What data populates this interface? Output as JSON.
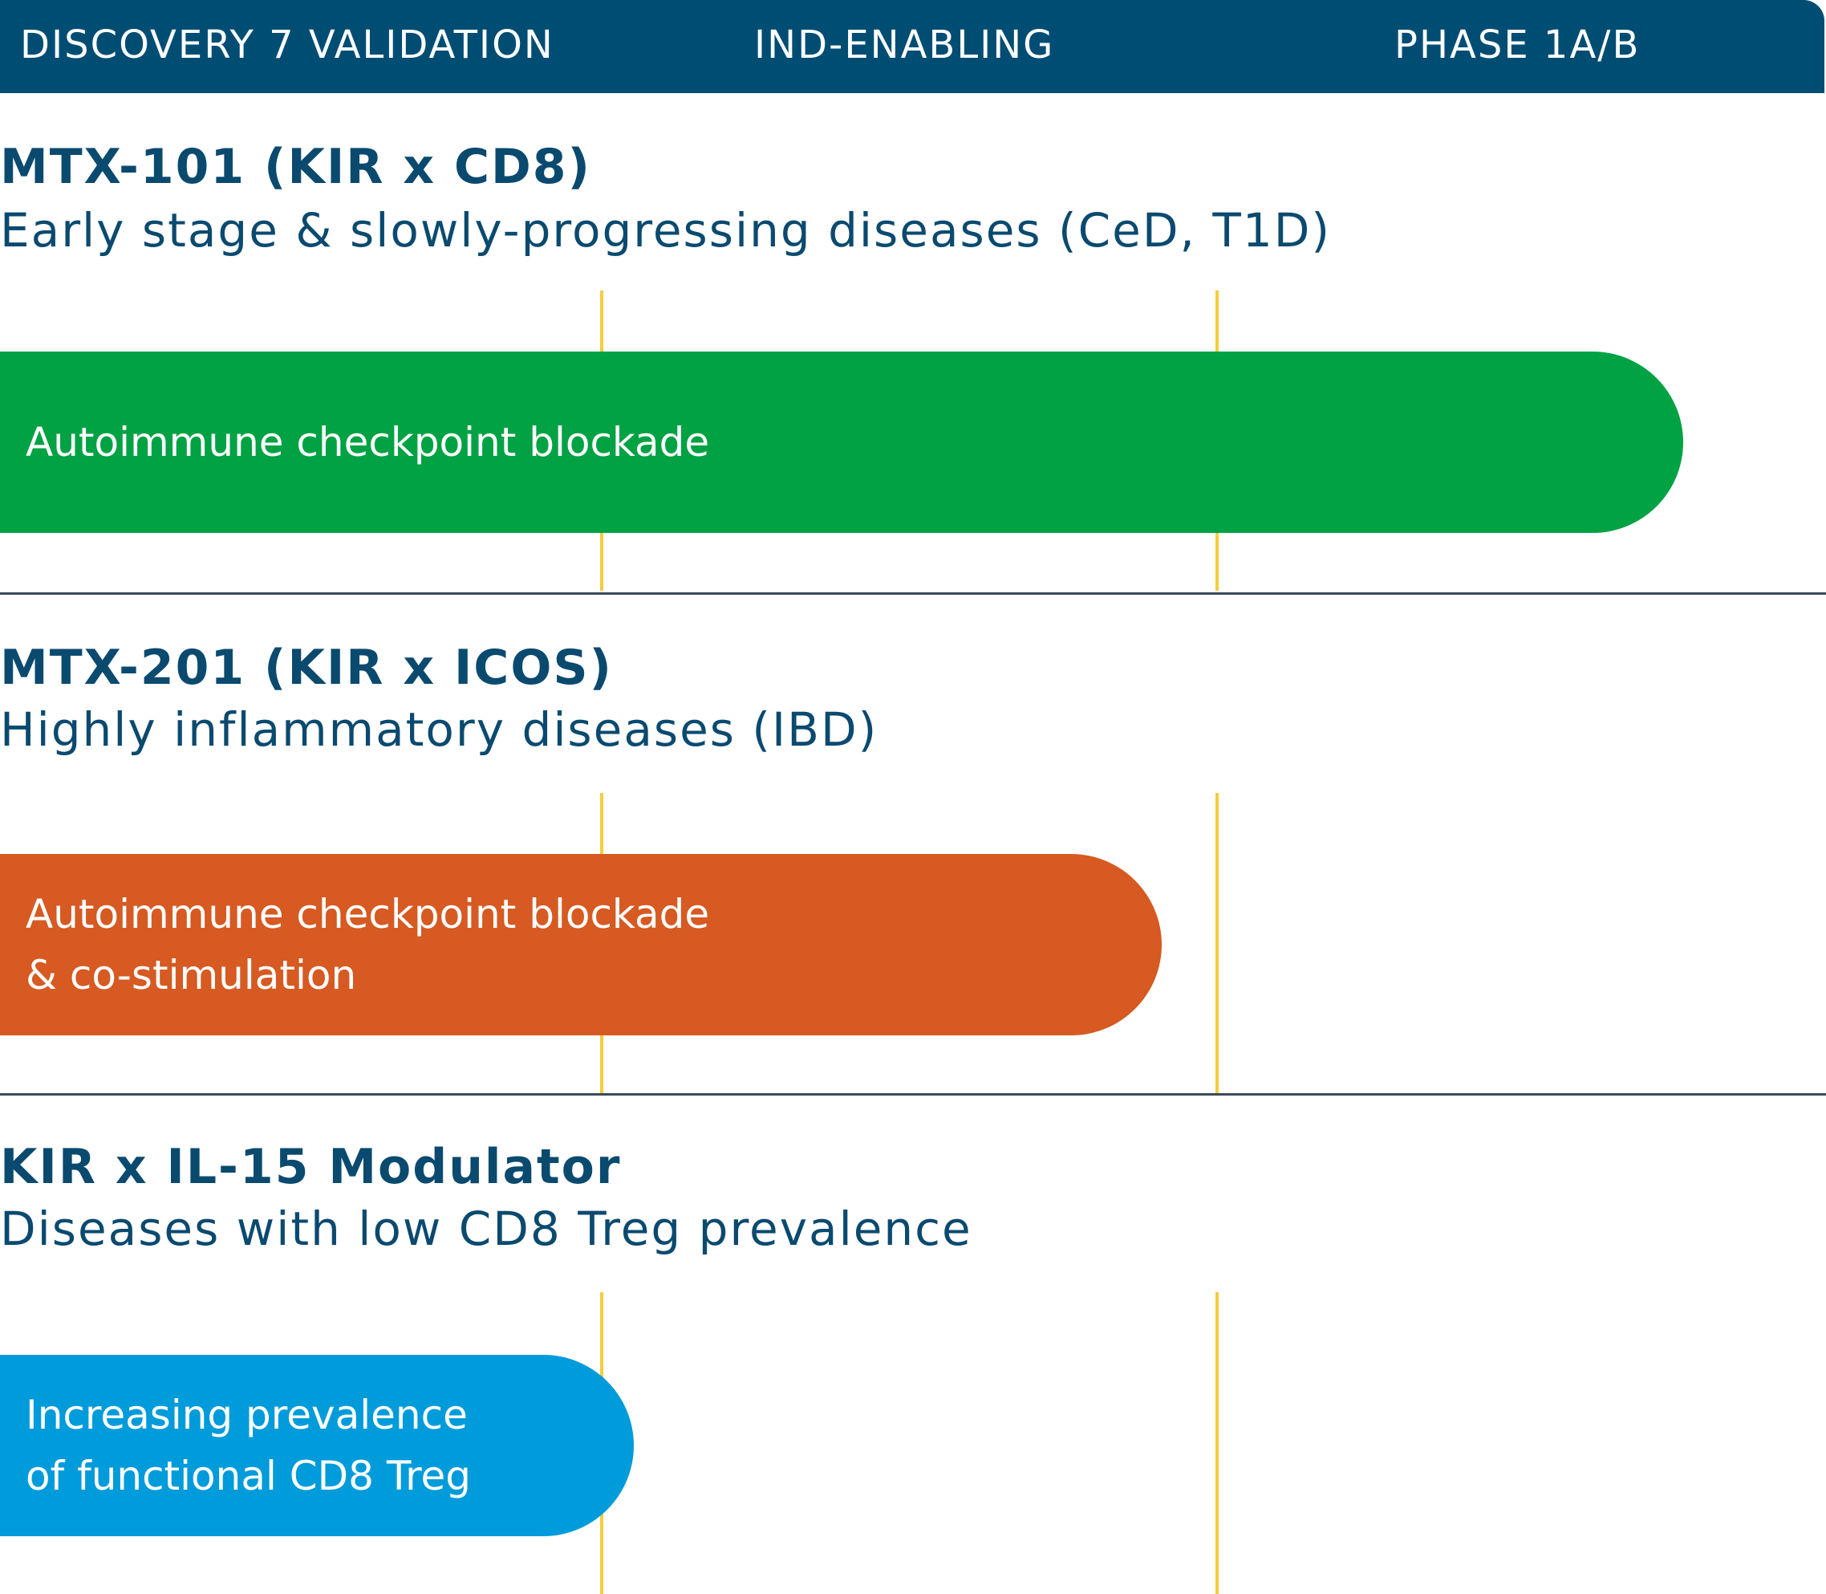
{
  "stages": [
    "DISCOVERY 7 VALIDATION",
    "IND-ENABLING",
    "PHASE 1A/B"
  ],
  "programs": [
    {
      "title": "MTX-101 (KIR x CD8)",
      "subtitle": "Early stage & slowly-progressing diseases (CeD, T1D)",
      "bar_lines": [
        "Autoimmune checkpoint blockade"
      ],
      "bar_color": "#00a244"
    },
    {
      "title": "MTX-201 (KIR x ICOS)",
      "subtitle": "Highly inflammatory diseases (IBD)",
      "bar_lines": [
        "Autoimmune checkpoint blockade",
        "& co-stimulation"
      ],
      "bar_color": "#d65a22"
    },
    {
      "title": "KIR x IL-15 Modulator",
      "subtitle": "Diseases with low CD8 Treg prevalence",
      "bar_lines": [
        "Increasing prevalence",
        "of functional CD8 Treg"
      ],
      "bar_color": "#009bdb"
    }
  ],
  "colors": {
    "header_bg": "#004d73",
    "text_dark": "#0b4a6f",
    "stage_divider": "#f5cd3c",
    "row_divider": "#3a4a5a"
  }
}
